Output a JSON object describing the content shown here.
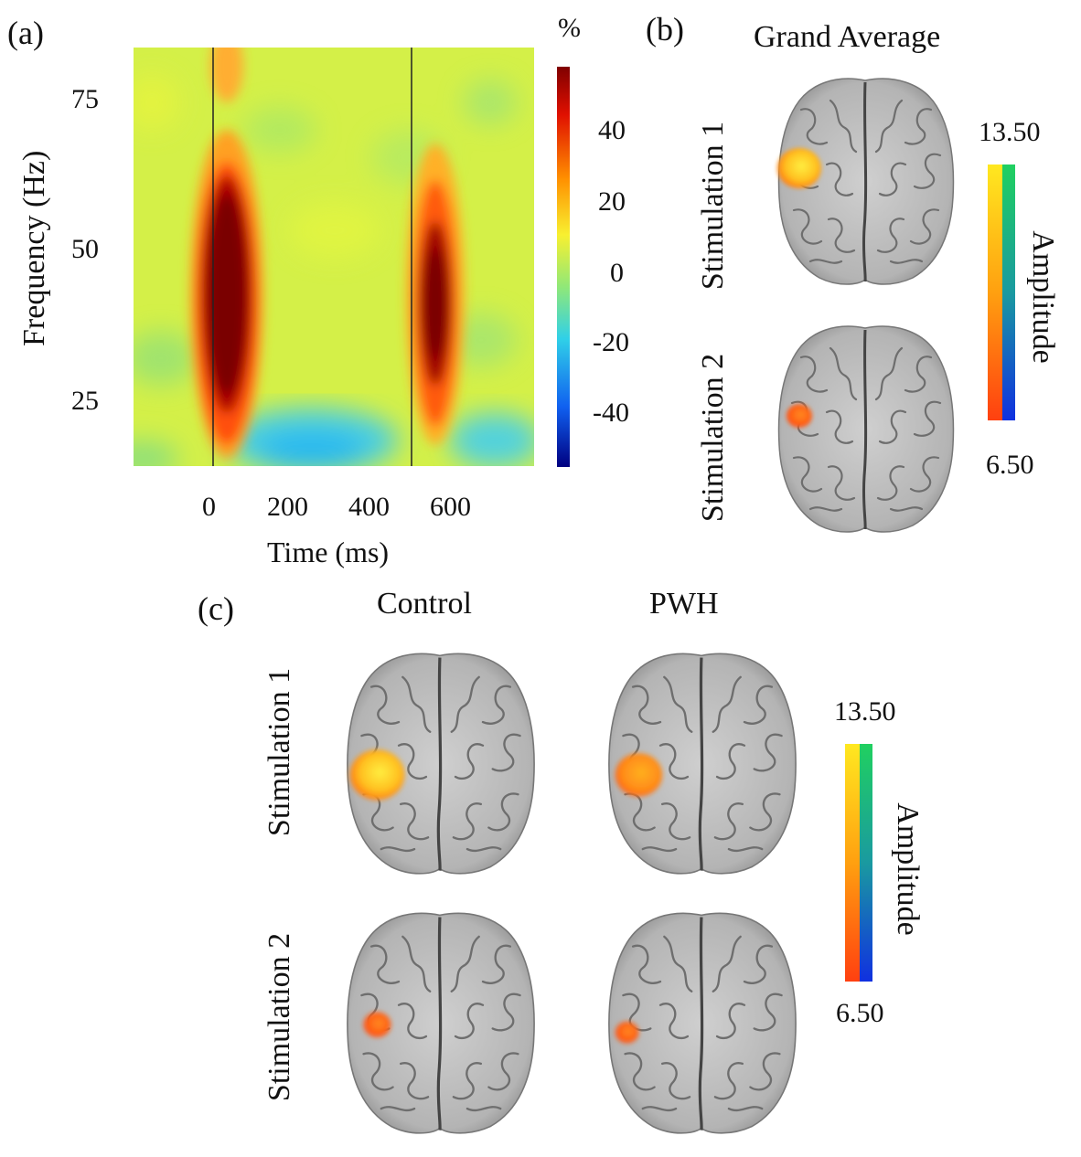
{
  "panel_a": {
    "label": "(a)",
    "colorbar_unit": "%",
    "colorbar_ticks": [
      "40",
      "20",
      "0",
      "-20",
      "-40"
    ],
    "ylabel": "Frequency (Hz)",
    "xlabel": "Time (ms)",
    "y_ticks": [
      "75",
      "50",
      "25"
    ],
    "x_ticks": [
      "0",
      "200",
      "400",
      "600"
    ],
    "chart_data": {
      "type": "heatmap",
      "title": "",
      "xlabel": "Time (ms)",
      "ylabel": "Frequency (Hz)",
      "xlim": [
        -200,
        800
      ],
      "ylim": [
        15,
        85
      ],
      "x_ticks": [
        0,
        200,
        400,
        600
      ],
      "y_ticks": [
        25,
        50,
        75
      ],
      "color_scale": "percent change",
      "color_range": [
        -55,
        55
      ],
      "colorbar_ticks": [
        40,
        20,
        0,
        -20,
        -40
      ],
      "stimulus_onsets_ms": [
        0,
        500
      ],
      "features": [
        {
          "time_ms": 20,
          "freq_range_hz": [
            20,
            62
          ],
          "peak_freq_hz": 40,
          "value": 55
        },
        {
          "time_ms": 520,
          "freq_range_hz": [
            22,
            60
          ],
          "peak_freq_hz": 40,
          "value": 45
        },
        {
          "time_ms": 250,
          "freq_range_hz": [
            15,
            25
          ],
          "value": -30
        },
        {
          "time_ms": 700,
          "freq_range_hz": [
            15,
            25
          ],
          "value": -20
        }
      ]
    }
  },
  "panel_b": {
    "label": "(b)",
    "title": "Grand Average",
    "row_labels": [
      "Stimulation 1",
      "Stimulation 2"
    ],
    "colorbar_max": "13.50",
    "colorbar_min": "6.50",
    "colorbar_label": "Amplitude"
  },
  "panel_c": {
    "label": "(c)",
    "columns": [
      "Control",
      "PWH"
    ],
    "row_labels": [
      "Stimulation 1",
      "Stimulation 2"
    ],
    "colorbar_max": "13.50",
    "colorbar_min": "6.50",
    "colorbar_label": "Amplitude"
  },
  "colors": {
    "heatmap_background": "#d8f24a",
    "positive_peak": "#7a0000",
    "negative": "#28c4f0",
    "brain_gray": "#b8b8b8",
    "activation_orange": "#ff7a1a",
    "activation_yellow": "#ffe030"
  }
}
